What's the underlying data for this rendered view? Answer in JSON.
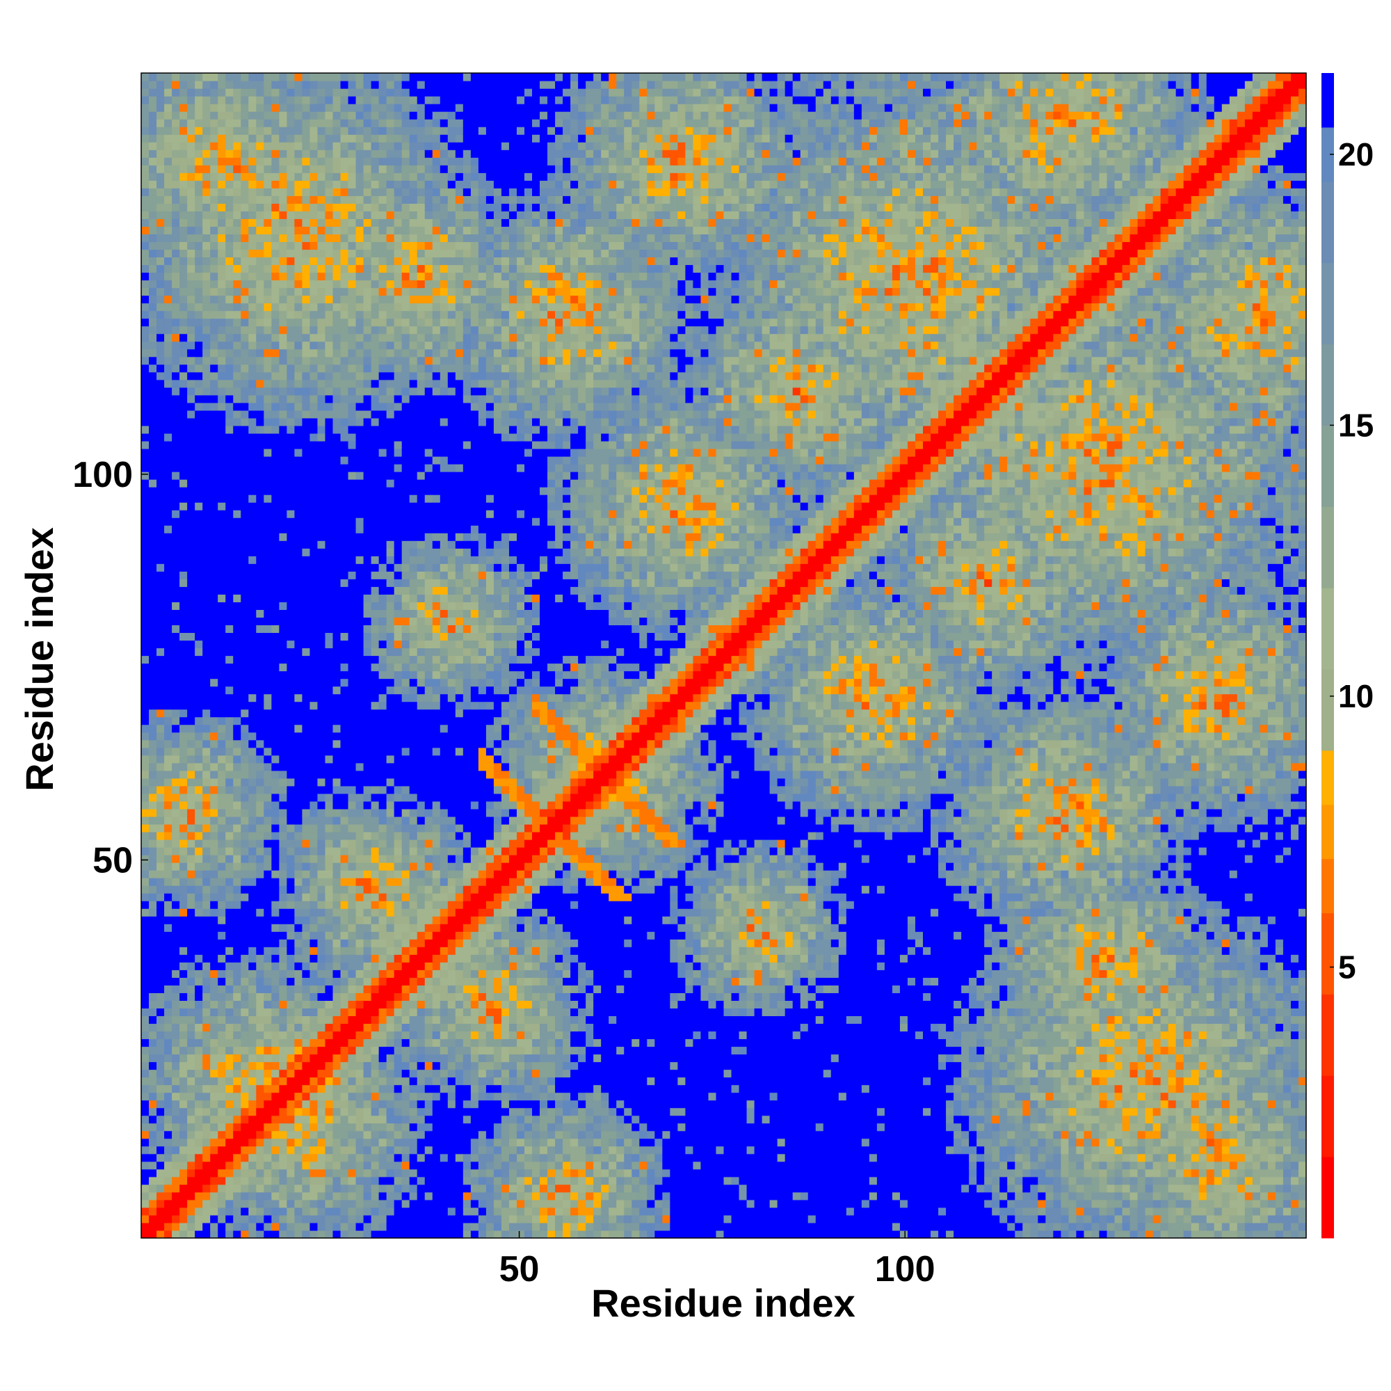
{
  "chart_data": {
    "type": "heatmap",
    "title": "",
    "xlabel": "Residue index",
    "ylabel": "Residue index",
    "xlim": [
      1,
      152
    ],
    "ylim": [
      1,
      152
    ],
    "x_ticks": [
      50,
      100
    ],
    "y_ticks": [
      50,
      100
    ],
    "colorbar": {
      "range": [
        0,
        21.5
      ],
      "ticks": [
        5,
        10,
        15,
        20
      ],
      "colors": [
        {
          "from": 0,
          "to": 1.5,
          "color": "#ff0000"
        },
        {
          "from": 1.5,
          "to": 3,
          "color": "#ff1a00"
        },
        {
          "from": 3,
          "to": 4.5,
          "color": "#ff3300"
        },
        {
          "from": 4.5,
          "to": 6,
          "color": "#ff5500"
        },
        {
          "from": 6,
          "to": 7,
          "color": "#ff7700"
        },
        {
          "from": 7,
          "to": 8,
          "color": "#ff9900"
        },
        {
          "from": 8,
          "to": 9,
          "color": "#ffb000"
        },
        {
          "from": 9,
          "to": 10.5,
          "color": "#9fb08a"
        },
        {
          "from": 10.5,
          "to": 12,
          "color": "#a3b58e"
        },
        {
          "from": 12,
          "to": 13.5,
          "color": "#93aa90"
        },
        {
          "from": 13.5,
          "to": 15,
          "color": "#86a196"
        },
        {
          "from": 15,
          "to": 16.5,
          "color": "#7d9aa0"
        },
        {
          "from": 16.5,
          "to": 18,
          "color": "#7494ab"
        },
        {
          "from": 18,
          "to": 19.5,
          "color": "#6a8cb5"
        },
        {
          "from": 19.5,
          "to": 20.5,
          "color": "#6288c0"
        },
        {
          "from": 20.5,
          "to": 21.5,
          "color": "#0000ff"
        }
      ]
    },
    "n_residues": 152,
    "pattern": {
      "diagonal": "near-zero distances along the main diagonal",
      "beta_hairpins": [
        {
          "center": [
            60,
            60
          ],
          "span": 10
        },
        {
          "center": [
            53,
            53
          ],
          "span": 10
        }
      ],
      "contact_blocks": [
        {
          "i_range": [
            1,
            45
          ],
          "j_range": [
            110,
            152
          ]
        },
        {
          "i_range": [
            80,
            125
          ],
          "j_range": [
            100,
            152
          ]
        },
        {
          "i_range": [
            40,
            75
          ],
          "j_range": [
            40,
            75
          ]
        },
        {
          "i_range": [
            1,
            40
          ],
          "j_range": [
            1,
            40
          ]
        }
      ]
    }
  }
}
